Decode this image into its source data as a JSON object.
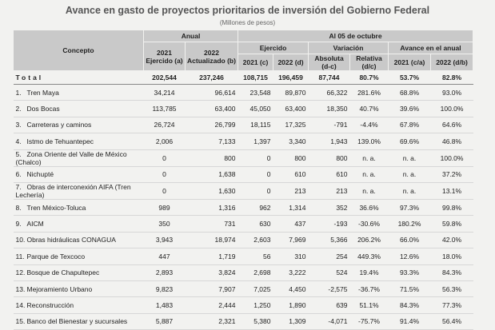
{
  "title": "Avance en gasto de proyectos prioritarios de inversión del Gobierno Federal",
  "subtitle": "(Millones de pesos)",
  "header": {
    "concepto": "Concepto",
    "anual": "Anual",
    "al05oct": "Al 05 de octubre",
    "anual_2021": "2021",
    "anual_2021_sub": "Ejercido (a)",
    "anual_2022": "2022",
    "anual_2022_sub": "Actualizado (b)",
    "ejercido": "Ejercido",
    "ej_2021": "2021 (c)",
    "ej_2022": "2022 (d)",
    "variacion": "Variación",
    "absoluta": "Absoluta (d-c)",
    "relativa": "Relativa (d/c)",
    "avance": "Avance en el anual",
    "av_2021": "2021 (c/a)",
    "av_2022": "2022 (d/b)"
  },
  "total": {
    "label": "Total",
    "values": [
      "202,544",
      "237,246",
      "108,715",
      "196,459",
      "87,744",
      "80.7%",
      "53.7%",
      "82.8%"
    ]
  },
  "rows": [
    {
      "num": "1.",
      "name": "Tren Maya",
      "values": [
        "34,214",
        "96,614",
        "23,548",
        "89,870",
        "66,322",
        "281.6%",
        "68.8%",
        "93.0%"
      ]
    },
    {
      "num": "2.",
      "name": "Dos Bocas",
      "values": [
        "113,785",
        "63,400",
        "45,050",
        "63,400",
        "18,350",
        "40.7%",
        "39.6%",
        "100.0%"
      ]
    },
    {
      "num": "3.",
      "name": "Carreteras y caminos",
      "values": [
        "26,724",
        "26,799",
        "18,115",
        "17,325",
        "-791",
        "-4.4%",
        "67.8%",
        "64.6%"
      ]
    },
    {
      "num": "4.",
      "name": "Istmo de Tehuantepec",
      "values": [
        "2,006",
        "7,133",
        "1,397",
        "3,340",
        "1,943",
        "139.0%",
        "69.6%",
        "46.8%"
      ]
    },
    {
      "num": "5.",
      "name": "Zona Oriente del Valle de México (Chalco)",
      "values": [
        "0",
        "800",
        "0",
        "800",
        "800",
        "n. a.",
        "n. a.",
        "100.0%"
      ]
    },
    {
      "num": "6.",
      "name": "Nichupté",
      "values": [
        "0",
        "1,638",
        "0",
        "610",
        "610",
        "n. a.",
        "n. a.",
        "37.2%"
      ]
    },
    {
      "num": "7.",
      "name": "Obras de interconexión AIFA (Tren Lechería)",
      "values": [
        "0",
        "1,630",
        "0",
        "213",
        "213",
        "n. a.",
        "n. a.",
        "13.1%"
      ]
    },
    {
      "num": "8.",
      "name": "Tren México-Toluca",
      "values": [
        "989",
        "1,316",
        "962",
        "1,314",
        "352",
        "36.6%",
        "97.3%",
        "99.8%"
      ]
    },
    {
      "num": "9.",
      "name": "AICM",
      "values": [
        "350",
        "731",
        "630",
        "437",
        "-193",
        "-30.6%",
        "180.2%",
        "59.8%"
      ]
    },
    {
      "num": "10.",
      "name": "Obras hidráulicas CONAGUA",
      "values": [
        "3,943",
        "18,974",
        "2,603",
        "7,969",
        "5,366",
        "206.2%",
        "66.0%",
        "42.0%"
      ]
    },
    {
      "num": "11.",
      "name": "Parque de Texcoco",
      "values": [
        "447",
        "1,719",
        "56",
        "310",
        "254",
        "449.3%",
        "12.6%",
        "18.0%"
      ]
    },
    {
      "num": "12.",
      "name": "Bosque de Chapultepec",
      "values": [
        "2,893",
        "3,824",
        "2,698",
        "3,222",
        "524",
        "19.4%",
        "93.3%",
        "84.3%"
      ]
    },
    {
      "num": "13.",
      "name": "Mejoramiento Urbano",
      "values": [
        "9,823",
        "7,907",
        "7,025",
        "4,450",
        "-2,575",
        "-36.7%",
        "71.5%",
        "56.3%"
      ]
    },
    {
      "num": "14.",
      "name": "Reconstrucción",
      "values": [
        "1,483",
        "2,444",
        "1,250",
        "1,890",
        "639",
        "51.1%",
        "84.3%",
        "77.3%"
      ]
    },
    {
      "num": "15.",
      "name": "Banco del Bienestar y sucursales",
      "values": [
        "5,887",
        "2,321",
        "5,380",
        "1,309",
        "-4,071",
        "-75.7%",
        "91.4%",
        "56.4%"
      ]
    }
  ]
}
